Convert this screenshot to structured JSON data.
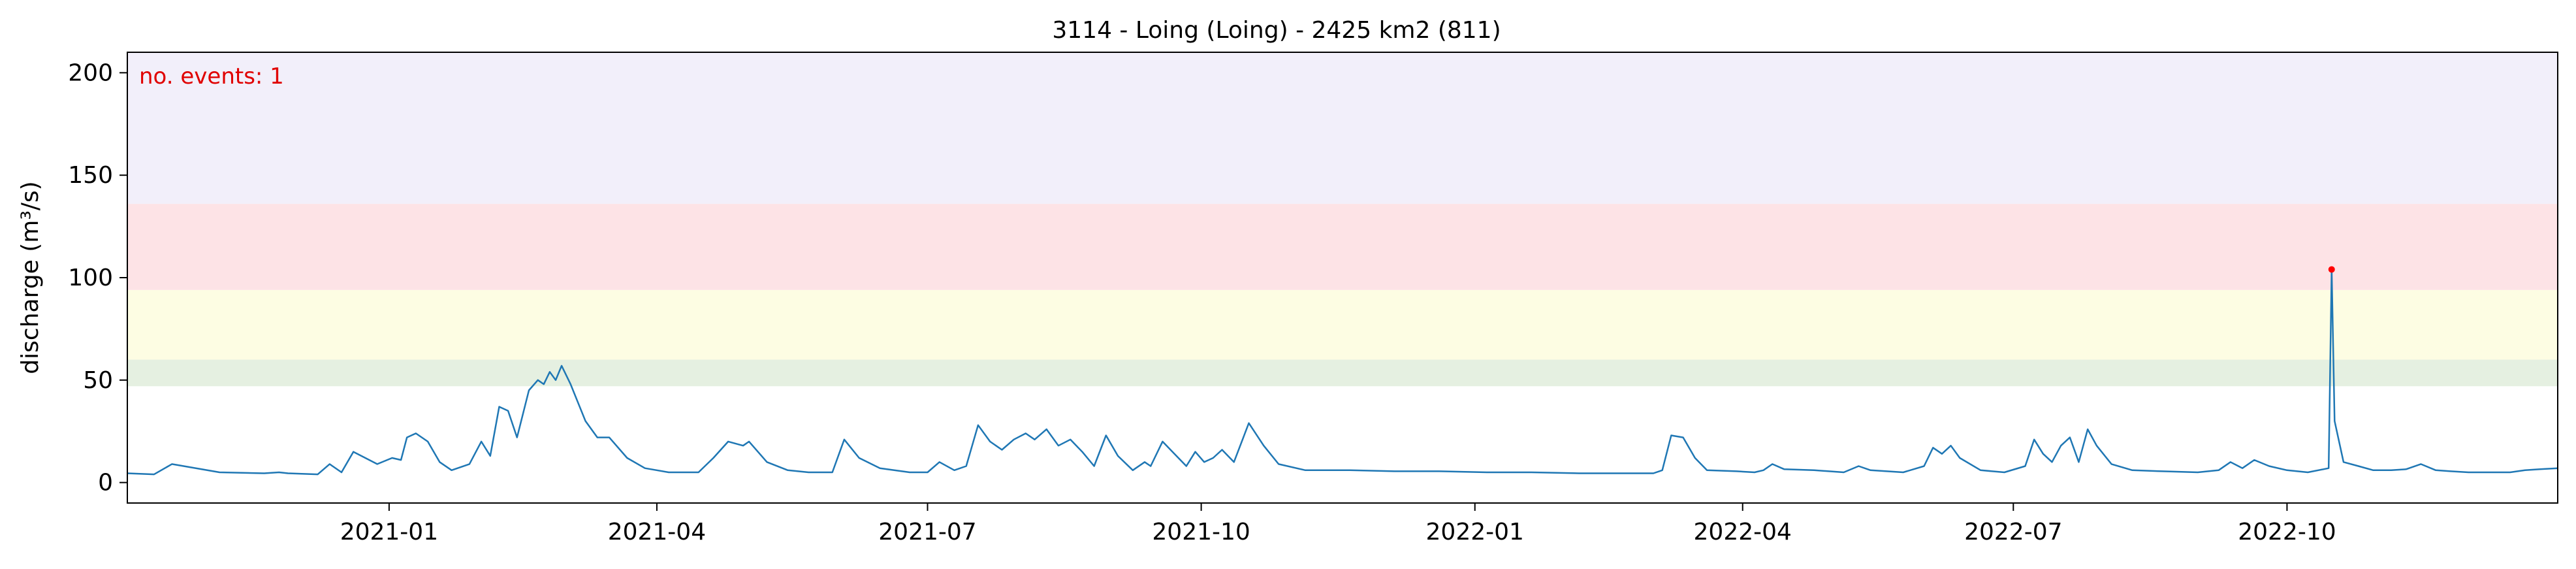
{
  "chart_data": {
    "type": "line",
    "title": "3114 - Loing (Loing) - 2425 km2 (811)",
    "ylabel": "discharge (m³/s)",
    "xlabel": "",
    "xlim": [
      "2020-10-05",
      "2022-12-31"
    ],
    "ylim": [
      -10,
      210
    ],
    "yticks": [
      0,
      50,
      100,
      150,
      200
    ],
    "xticks": [
      {
        "date": "2021-01-01",
        "label": "2021-01"
      },
      {
        "date": "2021-04-01",
        "label": "2021-04"
      },
      {
        "date": "2021-07-01",
        "label": "2021-07"
      },
      {
        "date": "2021-10-01",
        "label": "2021-10"
      },
      {
        "date": "2022-01-01",
        "label": "2022-01"
      },
      {
        "date": "2022-04-01",
        "label": "2022-04"
      },
      {
        "date": "2022-07-01",
        "label": "2022-07"
      },
      {
        "date": "2022-10-01",
        "label": "2022-10"
      }
    ],
    "bands": [
      {
        "from": 47,
        "to": 60,
        "color": "#e5f0e1"
      },
      {
        "from": 60,
        "to": 94,
        "color": "#fdfde3"
      },
      {
        "from": 94,
        "to": 136,
        "color": "#fde3e6"
      },
      {
        "from": 136,
        "to": 210,
        "color": "#f2effa"
      }
    ],
    "series": [
      {
        "color": "#1f77b4",
        "points": [
          [
            "2020-10-05",
            4.5
          ],
          [
            "2020-10-14",
            4.0
          ],
          [
            "2020-10-20",
            9.0
          ],
          [
            "2020-10-26",
            7.5
          ],
          [
            "2020-11-05",
            5.0
          ],
          [
            "2020-11-20",
            4.5
          ],
          [
            "2020-11-25",
            5.0
          ],
          [
            "2020-11-28",
            4.5
          ],
          [
            "2020-12-08",
            4.0
          ],
          [
            "2020-12-12",
            9.0
          ],
          [
            "2020-12-16",
            5.0
          ],
          [
            "2020-12-20",
            15.0
          ],
          [
            "2020-12-28",
            9.0
          ],
          [
            "2021-01-02",
            12.0
          ],
          [
            "2021-01-05",
            11.0
          ],
          [
            "2021-01-07",
            22.0
          ],
          [
            "2021-01-10",
            24.0
          ],
          [
            "2021-01-14",
            20.0
          ],
          [
            "2021-01-18",
            10.0
          ],
          [
            "2021-01-22",
            6.0
          ],
          [
            "2021-01-28",
            9.0
          ],
          [
            "2021-02-01",
            20.0
          ],
          [
            "2021-02-04",
            13.0
          ],
          [
            "2021-02-07",
            37.0
          ],
          [
            "2021-02-10",
            35.0
          ],
          [
            "2021-02-13",
            22.0
          ],
          [
            "2021-02-17",
            45.0
          ],
          [
            "2021-02-20",
            50.0
          ],
          [
            "2021-02-22",
            48.0
          ],
          [
            "2021-02-24",
            54.0
          ],
          [
            "2021-02-26",
            50.0
          ],
          [
            "2021-02-28",
            57.0
          ],
          [
            "2021-03-03",
            48.0
          ],
          [
            "2021-03-08",
            30.0
          ],
          [
            "2021-03-12",
            22.0
          ],
          [
            "2021-03-16",
            22.0
          ],
          [
            "2021-03-22",
            12.0
          ],
          [
            "2021-03-28",
            7.0
          ],
          [
            "2021-04-05",
            5.0
          ],
          [
            "2021-04-15",
            5.0
          ],
          [
            "2021-04-20",
            12.0
          ],
          [
            "2021-04-25",
            20.0
          ],
          [
            "2021-04-30",
            18.0
          ],
          [
            "2021-05-02",
            20.0
          ],
          [
            "2021-05-08",
            10.0
          ],
          [
            "2021-05-15",
            6.0
          ],
          [
            "2021-05-22",
            5.0
          ],
          [
            "2021-05-30",
            5.0
          ],
          [
            "2021-06-03",
            21.0
          ],
          [
            "2021-06-08",
            12.0
          ],
          [
            "2021-06-15",
            7.0
          ],
          [
            "2021-06-25",
            5.0
          ],
          [
            "2021-07-01",
            5.0
          ],
          [
            "2021-07-05",
            10.0
          ],
          [
            "2021-07-10",
            6.0
          ],
          [
            "2021-07-14",
            8.0
          ],
          [
            "2021-07-18",
            28.0
          ],
          [
            "2021-07-22",
            20.0
          ],
          [
            "2021-07-26",
            16.0
          ],
          [
            "2021-07-30",
            21.0
          ],
          [
            "2021-08-03",
            24.0
          ],
          [
            "2021-08-06",
            21.0
          ],
          [
            "2021-08-10",
            26.0
          ],
          [
            "2021-08-14",
            18.0
          ],
          [
            "2021-08-18",
            21.0
          ],
          [
            "2021-08-22",
            15.0
          ],
          [
            "2021-08-26",
            8.0
          ],
          [
            "2021-08-30",
            23.0
          ],
          [
            "2021-09-03",
            13.0
          ],
          [
            "2021-09-08",
            6.0
          ],
          [
            "2021-09-12",
            10.0
          ],
          [
            "2021-09-14",
            8.0
          ],
          [
            "2021-09-18",
            20.0
          ],
          [
            "2021-09-22",
            14.0
          ],
          [
            "2021-09-26",
            8.0
          ],
          [
            "2021-09-29",
            15.0
          ],
          [
            "2021-10-02",
            10.0
          ],
          [
            "2021-10-05",
            12.0
          ],
          [
            "2021-10-08",
            16.0
          ],
          [
            "2021-10-12",
            10.0
          ],
          [
            "2021-10-17",
            29.0
          ],
          [
            "2021-10-22",
            18.0
          ],
          [
            "2021-10-27",
            9.0
          ],
          [
            "2021-11-05",
            6.0
          ],
          [
            "2021-11-20",
            6.0
          ],
          [
            "2021-12-05",
            5.5
          ],
          [
            "2021-12-20",
            5.5
          ],
          [
            "2022-01-05",
            5.0
          ],
          [
            "2022-01-20",
            5.0
          ],
          [
            "2022-02-05",
            4.5
          ],
          [
            "2022-02-20",
            4.5
          ],
          [
            "2022-03-02",
            4.5
          ],
          [
            "2022-03-05",
            6.0
          ],
          [
            "2022-03-08",
            23.0
          ],
          [
            "2022-03-12",
            22.0
          ],
          [
            "2022-03-16",
            12.0
          ],
          [
            "2022-03-20",
            6.0
          ],
          [
            "2022-03-30",
            5.5
          ],
          [
            "2022-04-05",
            5.0
          ],
          [
            "2022-04-08",
            6.0
          ],
          [
            "2022-04-11",
            9.0
          ],
          [
            "2022-04-15",
            6.5
          ],
          [
            "2022-04-25",
            6.0
          ],
          [
            "2022-05-05",
            5.0
          ],
          [
            "2022-05-10",
            8.0
          ],
          [
            "2022-05-14",
            6.0
          ],
          [
            "2022-05-25",
            5.0
          ],
          [
            "2022-06-01",
            8.0
          ],
          [
            "2022-06-04",
            17.0
          ],
          [
            "2022-06-07",
            14.0
          ],
          [
            "2022-06-10",
            18.0
          ],
          [
            "2022-06-13",
            12.0
          ],
          [
            "2022-06-20",
            6.0
          ],
          [
            "2022-06-28",
            5.0
          ],
          [
            "2022-07-05",
            8.0
          ],
          [
            "2022-07-08",
            21.0
          ],
          [
            "2022-07-11",
            14.0
          ],
          [
            "2022-07-14",
            10.0
          ],
          [
            "2022-07-17",
            18.0
          ],
          [
            "2022-07-20",
            22.0
          ],
          [
            "2022-07-23",
            10.0
          ],
          [
            "2022-07-26",
            26.0
          ],
          [
            "2022-07-29",
            18.0
          ],
          [
            "2022-08-03",
            9.0
          ],
          [
            "2022-08-10",
            6.0
          ],
          [
            "2022-08-20",
            5.5
          ],
          [
            "2022-09-01",
            5.0
          ],
          [
            "2022-09-08",
            6.0
          ],
          [
            "2022-09-12",
            10.0
          ],
          [
            "2022-09-16",
            7.0
          ],
          [
            "2022-09-20",
            11.0
          ],
          [
            "2022-09-25",
            8.0
          ],
          [
            "2022-10-01",
            6.0
          ],
          [
            "2022-10-08",
            5.0
          ],
          [
            "2022-10-15",
            7.0
          ],
          [
            "2022-10-20",
            10.0
          ],
          [
            "2022-10-25",
            8.0
          ],
          [
            "2022-10-30",
            6.0
          ],
          [
            "2022-11-05",
            6.0
          ],
          [
            "2022-11-10",
            6.5
          ],
          [
            "2022-11-15",
            9.0
          ],
          [
            "2022-11-20",
            6.0
          ],
          [
            "2022-11-25",
            5.5
          ],
          [
            "2022-12-01",
            5.0
          ],
          [
            "2022-12-10",
            5.0
          ],
          [
            "2022-12-15",
            5.0
          ],
          [
            "2022-12-20",
            6.0
          ],
          [
            "2022-12-25",
            6.5
          ],
          [
            "2022-12-31",
            7.0
          ]
        ]
      }
    ],
    "events": [
      {
        "date": "2022-10-16",
        "value": 104,
        "color": "#ff0000"
      }
    ],
    "annotation": {
      "text": "no. events: 1",
      "color": "#e00000"
    }
  }
}
